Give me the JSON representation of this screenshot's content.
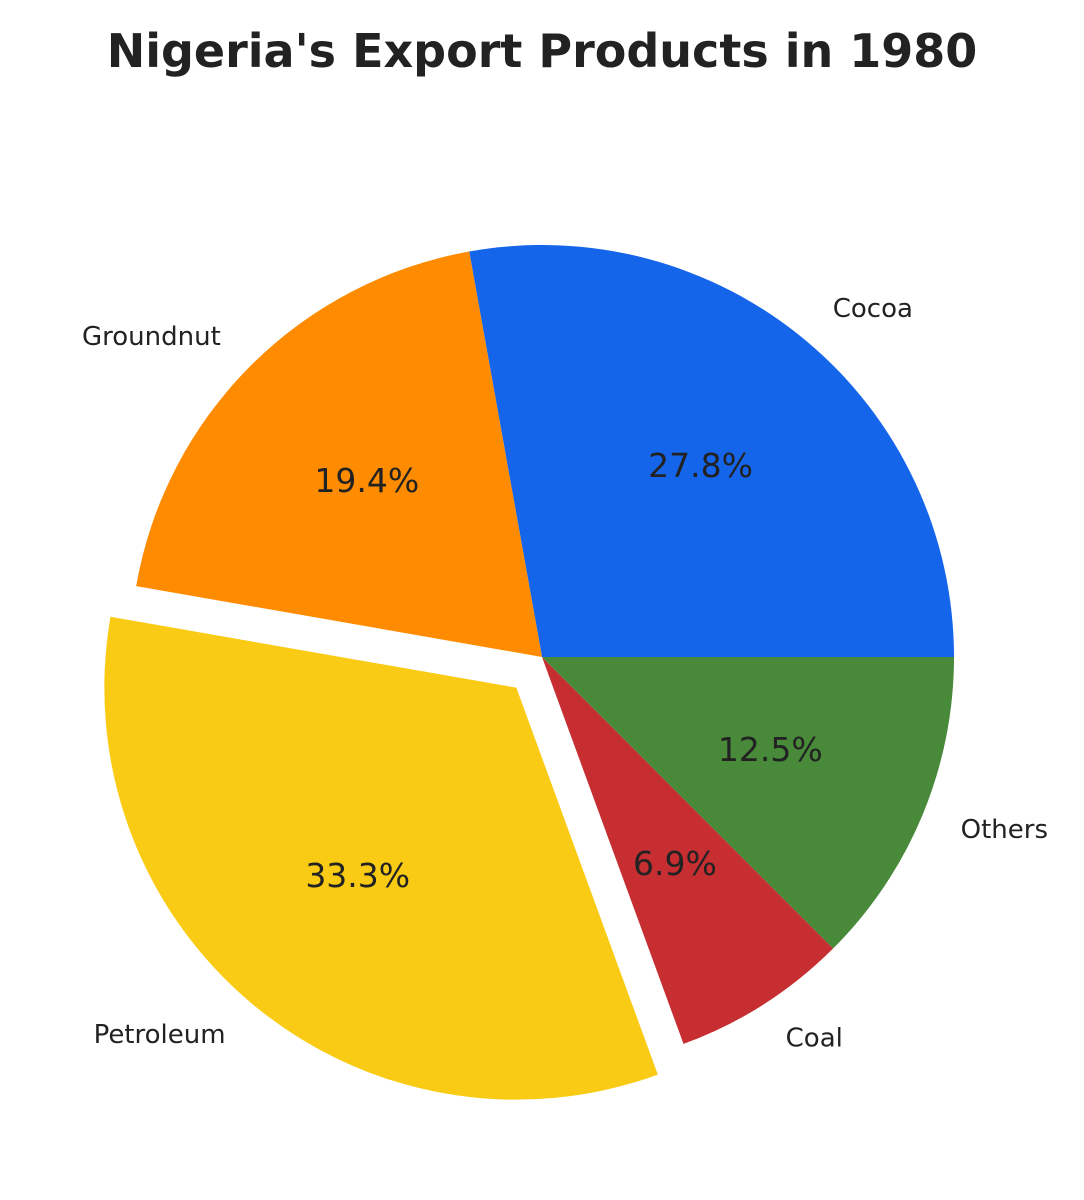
{
  "chart_data": {
    "type": "pie",
    "title": "Nigeria's Export Products in 1980",
    "slices": [
      {
        "label": "Cocoa",
        "value": 27.8,
        "display": "27.8%",
        "color": "#1565EB",
        "exploded": false
      },
      {
        "label": "Groundnut",
        "value": 19.4,
        "display": "19.4%",
        "color": "#FF8C00",
        "exploded": false
      },
      {
        "label": "Petroleum",
        "value": 33.3,
        "display": "33.3%",
        "color": "#F9CB14",
        "exploded": true
      },
      {
        "label": "Coal",
        "value": 6.9,
        "display": "6.9%",
        "color": "#C62E31",
        "exploded": false
      },
      {
        "label": "Others",
        "value": 12.5,
        "display": "12.5%",
        "color": "#488A39",
        "exploded": false
      }
    ],
    "start_angle_deg": 0,
    "direction": "counterclockwise"
  }
}
